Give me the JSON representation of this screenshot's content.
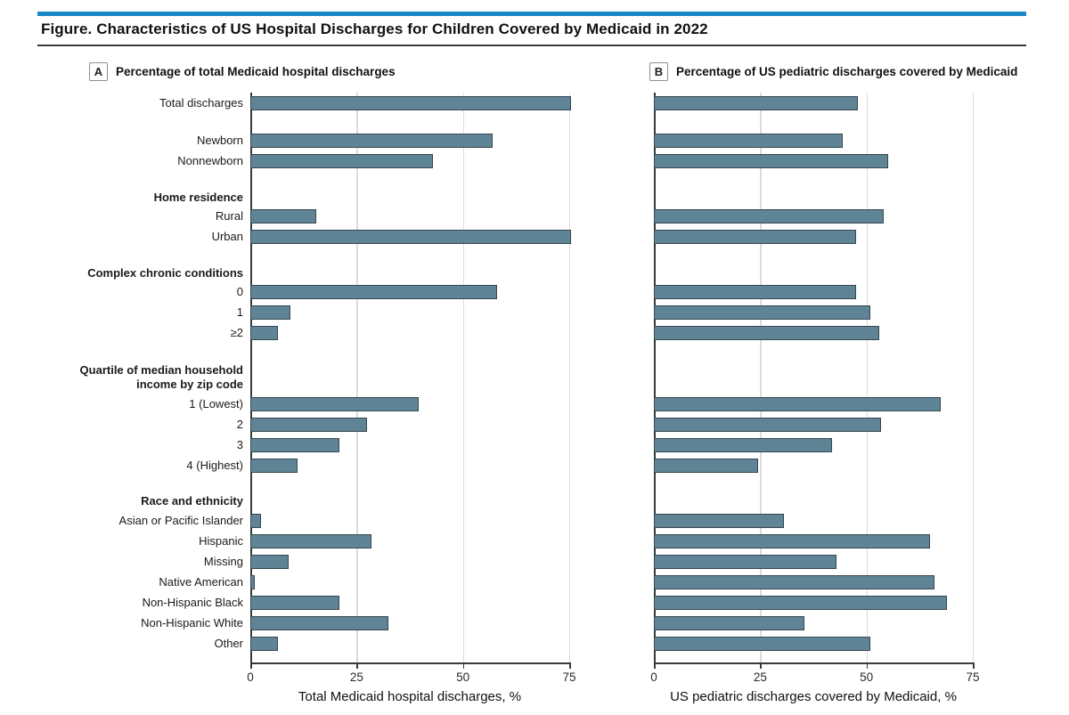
{
  "figure": {
    "title": "Figure. Characteristics of US Hospital Discharges for Children Covered by Medicaid in 2022"
  },
  "chart_data": {
    "type": "bar",
    "orientation": "horizontal",
    "panels": [
      {
        "id": "A",
        "title": "Percentage of total Medicaid hospital discharges",
        "xlabel": "Total Medicaid hospital discharges, %",
        "x_ticks": [
          0,
          25,
          50,
          75
        ],
        "xlim": [
          0,
          85
        ],
        "grid": "vertical"
      },
      {
        "id": "B",
        "title": "Percentage of US pediatric discharges covered by Medicaid",
        "xlabel": "US pediatric discharges covered by Medicaid, %",
        "x_ticks": [
          0,
          25,
          50,
          75
        ],
        "xlim": [
          0,
          85
        ],
        "grid": "vertical"
      }
    ],
    "series_names": [
      "Total Medicaid hospital discharges, %",
      "US pediatric discharges covered by Medicaid, %"
    ],
    "rows": [
      {
        "type": "bar",
        "label": "Total discharges",
        "a": 75.5,
        "b": 48
      },
      {
        "type": "spacer"
      },
      {
        "type": "bar",
        "label": "Newborn",
        "a": 57,
        "b": 44.5
      },
      {
        "type": "bar",
        "label": "Nonnewborn",
        "a": 43,
        "b": 55
      },
      {
        "type": "spacer"
      },
      {
        "type": "header",
        "label": "Home residence"
      },
      {
        "type": "bar",
        "label": "Rural",
        "a": 15.5,
        "b": 54
      },
      {
        "type": "bar",
        "label": "Urban",
        "a": 75.5,
        "b": 47.5
      },
      {
        "type": "spacer"
      },
      {
        "type": "header",
        "label": "Complex chronic conditions"
      },
      {
        "type": "bar",
        "label": "0",
        "a": 58,
        "b": 47.5
      },
      {
        "type": "bar",
        "label": "1",
        "a": 9.5,
        "b": 51
      },
      {
        "type": "bar",
        "label": "≥2",
        "a": 6.5,
        "b": 53
      },
      {
        "type": "spacer"
      },
      {
        "type": "header2",
        "label": "Quartile of median household income by zip code",
        "lines": [
          "Quartile of median household",
          "income by zip code"
        ]
      },
      {
        "type": "bar",
        "label": "1 (Lowest)",
        "a": 39.5,
        "b": 67.5
      },
      {
        "type": "bar",
        "label": "2",
        "a": 27.5,
        "b": 53.5
      },
      {
        "type": "bar",
        "label": "3",
        "a": 21,
        "b": 42
      },
      {
        "type": "bar",
        "label": "4 (Highest)",
        "a": 11,
        "b": 24.5
      },
      {
        "type": "spacer"
      },
      {
        "type": "header",
        "label": "Race and ethnicity"
      },
      {
        "type": "bar",
        "label": "Asian or Pacific Islander",
        "a": 2.5,
        "b": 30.5
      },
      {
        "type": "bar",
        "label": "Hispanic",
        "a": 28.5,
        "b": 65
      },
      {
        "type": "bar",
        "label": "Missing",
        "a": 9,
        "b": 43
      },
      {
        "type": "bar",
        "label": "Native American",
        "a": 1,
        "b": 66
      },
      {
        "type": "bar",
        "label": "Non-Hispanic Black",
        "a": 21,
        "b": 69
      },
      {
        "type": "bar",
        "label": "Non-Hispanic White",
        "a": 32.5,
        "b": 35.5
      },
      {
        "type": "bar",
        "label": "Other",
        "a": 6.5,
        "b": 51
      }
    ],
    "colors": {
      "bar_fill": "#5e8496",
      "bar_border": "#37474f",
      "accent_rule": "#1b88c9",
      "gridline": "#dcdcdc",
      "axis": "#3a3a3a"
    }
  }
}
